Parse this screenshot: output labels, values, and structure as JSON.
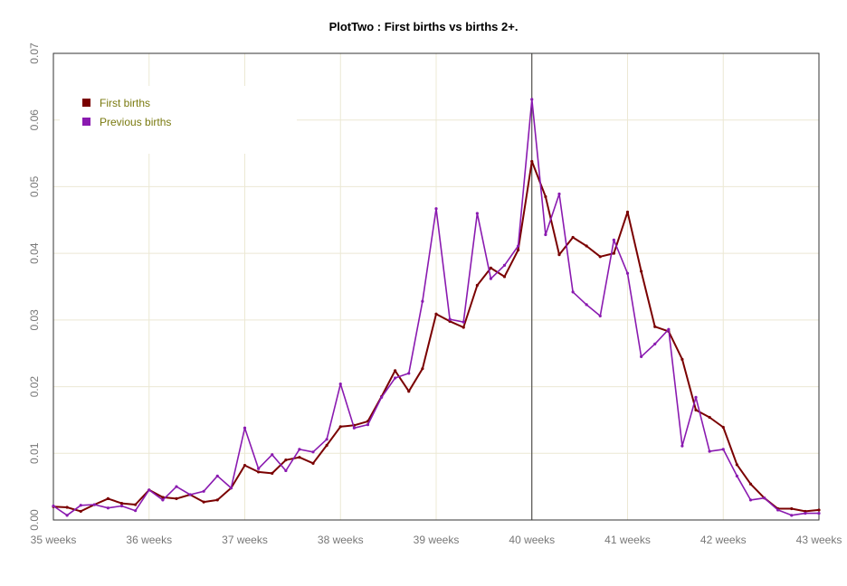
{
  "chart_data": {
    "type": "line",
    "title": "PlotTwo : First births vs births 2+.",
    "xlabel": "",
    "ylabel": "",
    "xlim": [
      35,
      43
    ],
    "ylim": [
      0,
      0.07
    ],
    "x_ticks": [
      35,
      36,
      37,
      38,
      39,
      40,
      41,
      42,
      43
    ],
    "x_tick_labels": [
      "35 weeks",
      "36 weeks",
      "37 weeks",
      "38 weeks",
      "39 weeks",
      "40 weeks",
      "41 weeks",
      "42 weeks",
      "43 weeks"
    ],
    "y_ticks": [
      0,
      0.01,
      0.02,
      0.03,
      0.04,
      0.05,
      0.06,
      0.07
    ],
    "y_tick_labels": [
      "0.00",
      "0.01",
      "0.02",
      "0.03",
      "0.04",
      "0.05",
      "0.06",
      "0.07"
    ],
    "reference_line_x": 40,
    "grid": true,
    "legend_position": "top-left",
    "x": [
      35.0,
      35.143,
      35.286,
      35.429,
      35.571,
      35.714,
      35.857,
      36.0,
      36.143,
      36.286,
      36.429,
      36.571,
      36.714,
      36.857,
      37.0,
      37.143,
      37.286,
      37.429,
      37.571,
      37.714,
      37.857,
      38.0,
      38.143,
      38.286,
      38.429,
      38.571,
      38.714,
      38.857,
      39.0,
      39.143,
      39.286,
      39.429,
      39.571,
      39.714,
      39.857,
      40.0,
      40.143,
      40.286,
      40.429,
      40.571,
      40.714,
      40.857,
      41.0,
      41.143,
      41.286,
      41.429,
      41.571,
      41.714,
      41.857,
      42.0,
      42.143,
      42.286,
      42.429,
      42.571,
      42.714,
      42.857,
      43.0
    ],
    "series": [
      {
        "name": "First births",
        "color": "#7a0000",
        "values": [
          0.002,
          0.0019,
          0.0013,
          0.0023,
          0.0032,
          0.0025,
          0.0023,
          0.0045,
          0.0034,
          0.0032,
          0.0038,
          0.0027,
          0.003,
          0.0048,
          0.0082,
          0.0072,
          0.007,
          0.009,
          0.0094,
          0.0085,
          0.0112,
          0.014,
          0.0142,
          0.0148,
          0.0185,
          0.0224,
          0.0193,
          0.0227,
          0.0309,
          0.0298,
          0.0289,
          0.0352,
          0.0378,
          0.0365,
          0.0405,
          0.0538,
          0.0485,
          0.0398,
          0.0424,
          0.0411,
          0.0395,
          0.04,
          0.0462,
          0.0373,
          0.029,
          0.0283,
          0.0241,
          0.0165,
          0.0154,
          0.0139,
          0.0083,
          0.0054,
          0.0033,
          0.0017,
          0.0017,
          0.0013,
          0.0015
        ]
      },
      {
        "name": "Previous births",
        "color": "#8a1ab0",
        "values": [
          0.0021,
          0.0007,
          0.0022,
          0.0023,
          0.0018,
          0.0021,
          0.0014,
          0.0045,
          0.003,
          0.005,
          0.0038,
          0.0043,
          0.0066,
          0.0048,
          0.0138,
          0.0077,
          0.0098,
          0.0074,
          0.0106,
          0.0102,
          0.0121,
          0.0204,
          0.0138,
          0.0143,
          0.0184,
          0.0213,
          0.022,
          0.0328,
          0.0467,
          0.0301,
          0.0297,
          0.046,
          0.0362,
          0.0382,
          0.0411,
          0.0631,
          0.0428,
          0.0489,
          0.0342,
          0.0323,
          0.0306,
          0.042,
          0.037,
          0.0245,
          0.0264,
          0.0286,
          0.0111,
          0.0184,
          0.0103,
          0.0106,
          0.0066,
          0.003,
          0.0033,
          0.0015,
          0.0007,
          0.001,
          0.001
        ]
      }
    ]
  }
}
